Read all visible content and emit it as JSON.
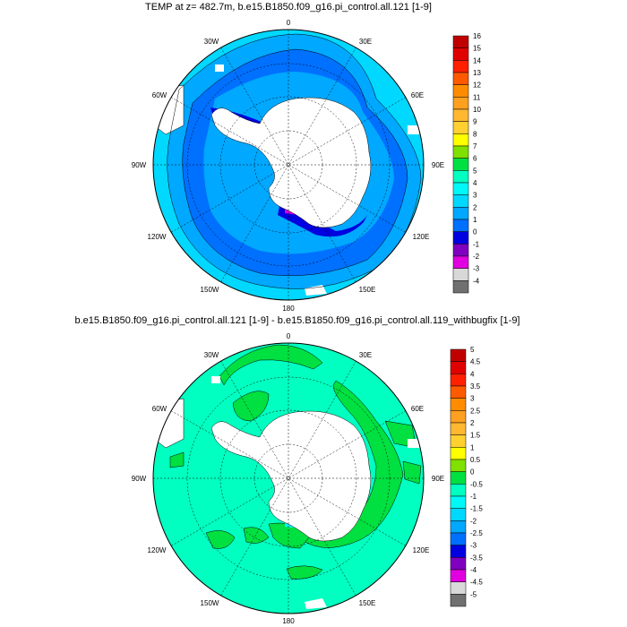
{
  "palette": {
    "16": "#c00000",
    "15": "#e00000",
    "14": "#ff2000",
    "13": "#ff5a00",
    "12": "#ff8c00",
    "11": "#ffa020",
    "10": "#ffb830",
    "9": "#ffd030",
    "8": "#ffff00",
    "7": "#80e000",
    "6": "#00e040",
    "5": "#00ffc0",
    "4": "#00f8f8",
    "3": "#00d8ff",
    "2": "#00a8ff",
    "1": "#0070ff",
    "0": "#0000e0",
    "-1": "#8000c0",
    "-2": "#e000e0",
    "-3": "#d8d8d8",
    "-4": "#707070"
  },
  "maps": [
    {
      "title": "TEMP at z= 482.7m, b.e15.B1850.f09_g16.pi_control.all.121 [1-9]",
      "lon_labels": {
        "top": "0",
        "top_right": "30E",
        "right_top": "60E",
        "right": "90E",
        "right_bottom": "120E",
        "bottom_right": "150E",
        "bottom": "180",
        "bottom_left": "150W",
        "left_bottom": "120W",
        "left": "90W",
        "left_top": "60W",
        "top_left": "30W"
      },
      "colorbar": {
        "labels": [
          "16",
          "15",
          "14",
          "13",
          "12",
          "11",
          "10",
          "9",
          "8",
          "7",
          "6",
          "5",
          "4",
          "3",
          "2",
          "1",
          "0",
          "-1",
          "-2",
          "-3",
          "-4"
        ],
        "colors": [
          "#c00000",
          "#e00000",
          "#ff2000",
          "#ff5a00",
          "#ff8c00",
          "#ffa020",
          "#ffb830",
          "#ffd030",
          "#ffff00",
          "#80e000",
          "#00e040",
          "#00ffc0",
          "#00f8f8",
          "#00d8ff",
          "#00a8ff",
          "#0070ff",
          "#0000e0",
          "#8000c0",
          "#e000e0",
          "#d8d8d8",
          "#707070"
        ]
      }
    },
    {
      "title": "b.e15.B1850.f09_g16.pi_control.all.121 [1-9] - b.e15.B1850.f09_g16.pi_control.all.119_withbugfix [1-9]",
      "lon_labels": {
        "top": "0",
        "top_right": "30E",
        "right_top": "60E",
        "right": "90E",
        "right_bottom": "120E",
        "bottom_right": "150E",
        "bottom": "180",
        "bottom_left": "150W",
        "left_bottom": "120W",
        "left": "90W",
        "left_top": "60W",
        "top_left": "30W"
      },
      "colorbar": {
        "labels": [
          "5",
          "4.5",
          "4",
          "3.5",
          "3",
          "2.5",
          "2",
          "1.5",
          "1",
          "0.5",
          "0",
          "-0.5",
          "-1",
          "-1.5",
          "-2",
          "-2.5",
          "-3",
          "-3.5",
          "-4",
          "-4.5",
          "-5"
        ],
        "colors": [
          "#c00000",
          "#e00000",
          "#ff2000",
          "#ff5a00",
          "#ff8c00",
          "#ffa020",
          "#ffb830",
          "#ffd030",
          "#ffff00",
          "#80e000",
          "#00e040",
          "#00ffc0",
          "#00f8f8",
          "#00d8ff",
          "#00a8ff",
          "#0070ff",
          "#0000e0",
          "#8000c0",
          "#e000e0",
          "#d8d8d8",
          "#707070"
        ]
      }
    }
  ]
}
